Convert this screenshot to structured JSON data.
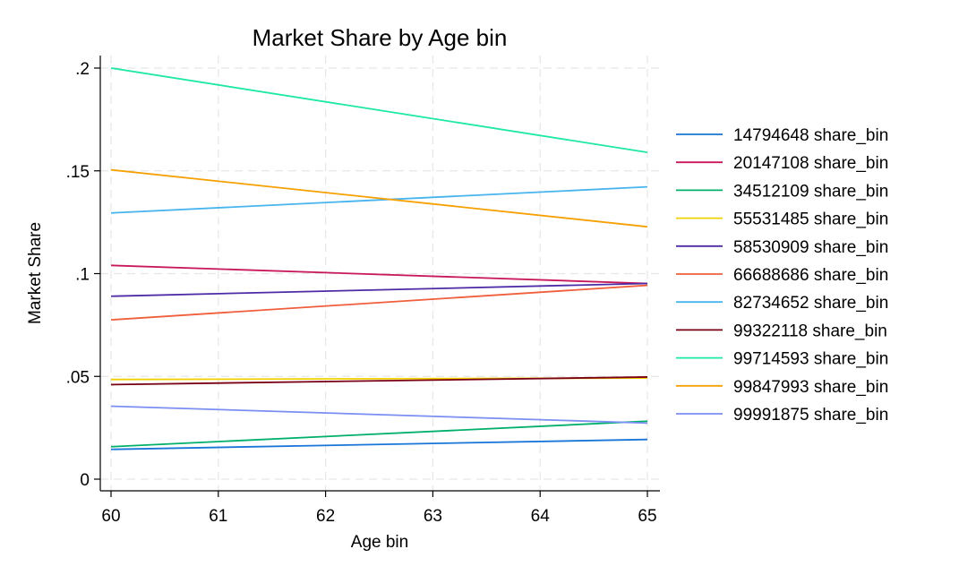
{
  "chart_data": {
    "type": "line",
    "title": "Market Share by Age bin",
    "xlabel": "Age bin",
    "ylabel": "Market Share",
    "x": [
      60,
      65
    ],
    "xlim": [
      60,
      65
    ],
    "ylim": [
      0,
      0.2
    ],
    "x_ticks": [
      60,
      61,
      62,
      63,
      64,
      65
    ],
    "x_tick_labels": [
      "60",
      "61",
      "62",
      "63",
      "64",
      "65"
    ],
    "y_ticks": [
      0,
      0.05,
      0.1,
      0.15,
      0.2
    ],
    "y_tick_labels": [
      "0",
      ".05",
      ".1",
      ".15",
      ".2"
    ],
    "grid": true,
    "legend_position": "right",
    "series": [
      {
        "name": "14794648 share_bin",
        "color": "#1a75d9",
        "values": [
          0.0145,
          0.0193
        ]
      },
      {
        "name": "20147108 share_bin",
        "color": "#c8175a",
        "values": [
          0.104,
          0.0952
        ]
      },
      {
        "name": "34512109 share_bin",
        "color": "#00b06a",
        "values": [
          0.0158,
          0.0282
        ]
      },
      {
        "name": "55531485 share_bin",
        "color": "#f0d000",
        "values": [
          0.0485,
          0.0492
        ]
      },
      {
        "name": "58530909 share_bin",
        "color": "#4d2ba6",
        "values": [
          0.089,
          0.0952
        ]
      },
      {
        "name": "66688686 share_bin",
        "color": "#f05e3c",
        "values": [
          0.0775,
          0.0943
        ]
      },
      {
        "name": "82734652 share_bin",
        "color": "#48b4ee",
        "values": [
          0.1295,
          0.1422
        ]
      },
      {
        "name": "99322118 share_bin",
        "color": "#7a0013",
        "values": [
          0.046,
          0.0497
        ]
      },
      {
        "name": "99714593 share_bin",
        "color": "#1ee8a6",
        "values": [
          0.2,
          0.159
        ]
      },
      {
        "name": "99847993 share_bin",
        "color": "#f6a000",
        "values": [
          0.1505,
          0.1228
        ]
      },
      {
        "name": "99991875 share_bin",
        "color": "#7b8ef2",
        "values": [
          0.0355,
          0.0273
        ]
      }
    ]
  }
}
